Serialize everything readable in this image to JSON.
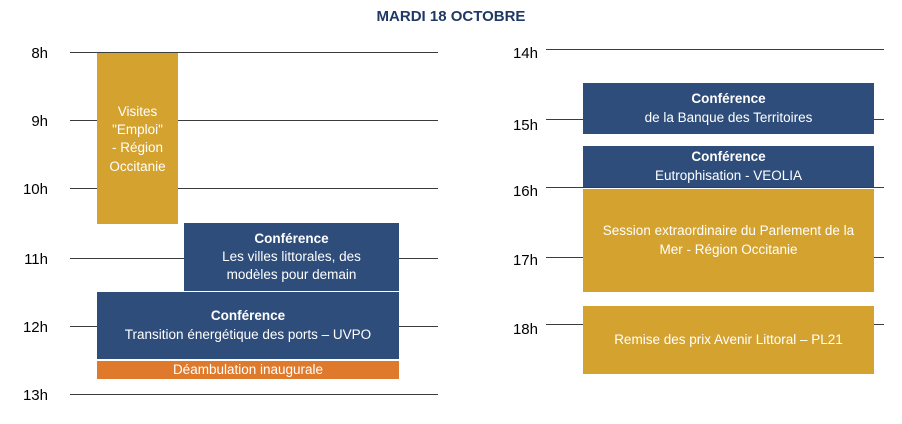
{
  "title": "MARDI 18 OCTOBRE",
  "left_hours": [
    "8h",
    "9h",
    "10h",
    "11h",
    "12h",
    "13h"
  ],
  "right_hours": [
    "14h",
    "15h",
    "16h",
    "17h",
    "18h"
  ],
  "colors": {
    "title": "#1f3864",
    "gold": "#d4a22e",
    "blue": "#2e4d7b",
    "orange": "#df7a2c"
  },
  "events": {
    "visites": {
      "lines": [
        "Visites",
        "\"Emploi\"",
        "- Région",
        "Occitanie"
      ]
    },
    "conf_villes": {
      "heading": "Conférence",
      "lines": [
        "Les villes littorales, des",
        "modèles pour demain"
      ]
    },
    "conf_transition": {
      "heading": "Conférence",
      "lines": [
        "Transition énergétique des ports – UVPO"
      ]
    },
    "deambulation": {
      "text": "Déambulation inaugurale"
    },
    "conf_banque": {
      "heading": "Conférence",
      "lines": [
        "de la Banque des Territoires"
      ]
    },
    "conf_veolia": {
      "heading": "Conférence",
      "lines": [
        "Eutrophisation - VEOLIA"
      ]
    },
    "session": {
      "lines": [
        "Session extraordinaire du Parlement de la",
        "Mer - Région Occitanie"
      ]
    },
    "remise": {
      "text": "Remise des prix Avenir Littoral – PL21"
    }
  }
}
